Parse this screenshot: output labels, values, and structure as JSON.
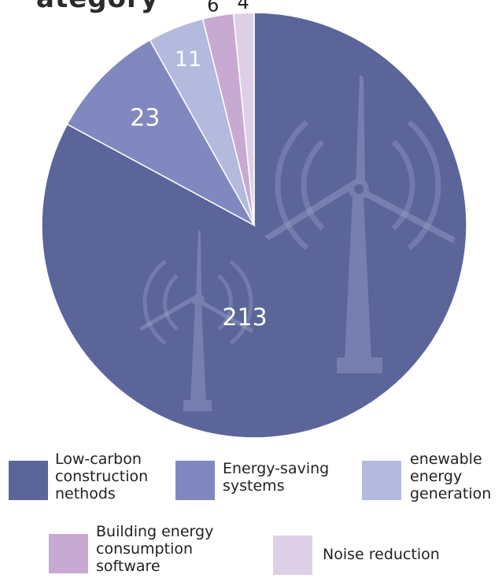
{
  "title_fragment": "ategory",
  "chart_data": {
    "type": "pie",
    "title": "",
    "categories": [
      "Low-carbon construction nethods",
      "Energy-saving systems",
      "enewable energy generation",
      "Building energy consumption software",
      "Noise reduction"
    ],
    "values": [
      213,
      23,
      11,
      6,
      4
    ],
    "colors": [
      "#5b6599",
      "#8188bf",
      "#b4bade",
      "#c8a9d1",
      "#ddd0e6"
    ],
    "start_angle": "12 o'clock",
    "direction": "clockwise",
    "legend_position": "bottom"
  },
  "legend": [
    {
      "label": "Low-carbon\nconstruction\nnethods",
      "color": "#5b6599"
    },
    {
      "label": "Energy-saving\nsystems",
      "color": "#8188bf"
    },
    {
      "label": "enewable\nenergy\ngeneration",
      "color": "#b4bade"
    },
    {
      "label": "Building energy\nconsumption\nsoftware",
      "color": "#c8a9d1"
    },
    {
      "label": "Noise reduction",
      "color": "#ddd0e6"
    }
  ]
}
